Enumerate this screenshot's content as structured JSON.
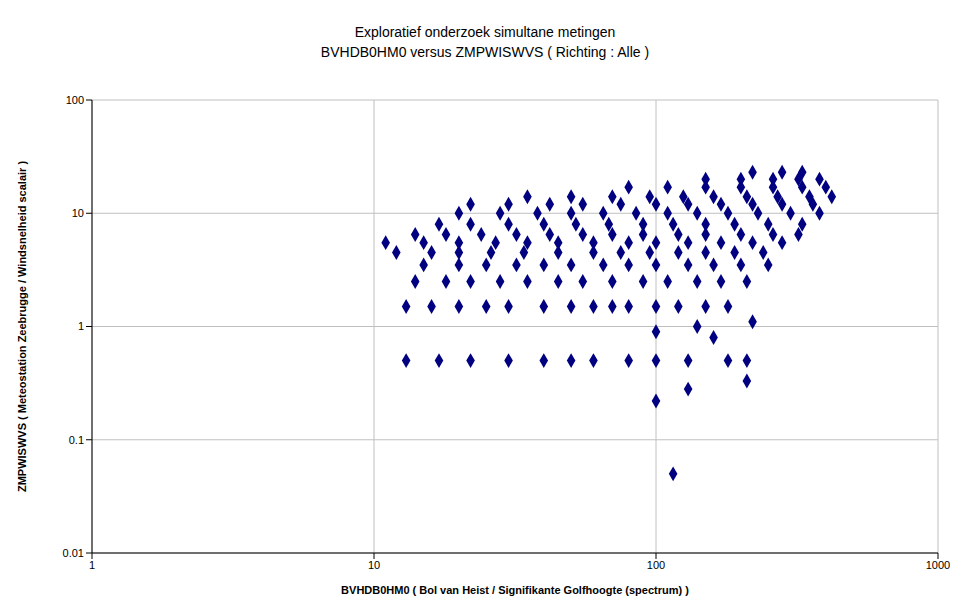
{
  "chart_data": {
    "type": "scatter",
    "title": "Exploratief onderzoek simultane metingen\nBVHDB0HM0 versus ZMPWISWVS ( Richting : Alle )",
    "x_label": "BVHDB0HM0 ( Bol van Heist / Signifikante Golfhoogte (spectrum) )",
    "y_label": "ZMPWISWVS ( Meteostation Zeebrugge / Windsnelheid scalair )",
    "log": true,
    "grid": true,
    "marker": "diamond",
    "color": "#000080",
    "xlim": [
      1,
      1000
    ],
    "xticks": [
      1,
      10,
      100,
      1000
    ],
    "ylim": [
      0.01,
      100
    ],
    "yticks": [
      0.01,
      0.1,
      1,
      10,
      100
    ],
    "x": [
      13,
      17,
      22,
      30,
      40,
      50,
      60,
      80,
      100,
      130,
      180,
      210,
      13,
      16,
      20,
      25,
      30,
      40,
      50,
      60,
      70,
      80,
      100,
      120,
      150,
      180,
      14,
      18,
      22,
      28,
      35,
      45,
      55,
      70,
      90,
      110,
      140,
      170,
      210,
      15,
      20,
      25,
      32,
      40,
      50,
      65,
      80,
      100,
      130,
      160,
      200,
      250,
      12,
      16,
      20,
      26,
      34,
      45,
      60,
      75,
      95,
      120,
      150,
      190,
      240,
      11,
      15,
      20,
      27,
      35,
      45,
      60,
      80,
      100,
      130,
      170,
      220,
      280,
      14,
      18,
      24,
      32,
      42,
      55,
      70,
      90,
      120,
      150,
      200,
      260,
      320,
      17,
      22,
      30,
      40,
      52,
      68,
      90,
      115,
      150,
      190,
      250,
      330,
      20,
      28,
      38,
      50,
      65,
      85,
      110,
      140,
      180,
      230,
      300,
      380,
      22,
      30,
      42,
      55,
      75,
      100,
      130,
      170,
      220,
      280,
      360,
      35,
      50,
      70,
      95,
      125,
      160,
      210,
      270,
      350,
      420,
      80,
      110,
      150,
      200,
      260,
      330,
      400,
      150,
      200,
      260,
      320,
      380,
      220,
      280,
      330,
      100,
      100,
      115,
      130,
      210,
      220,
      160,
      140
    ],
    "values": [
      0.5,
      0.5,
      0.5,
      0.5,
      0.5,
      0.5,
      0.5,
      0.5,
      0.5,
      0.5,
      0.5,
      0.5,
      1.5,
      1.5,
      1.5,
      1.5,
      1.5,
      1.5,
      1.5,
      1.5,
      1.5,
      1.5,
      1.5,
      1.5,
      1.5,
      1.5,
      2.5,
      2.5,
      2.5,
      2.5,
      2.5,
      2.5,
      2.5,
      2.5,
      2.5,
      2.5,
      2.5,
      2.5,
      2.5,
      3.5,
      3.5,
      3.5,
      3.5,
      3.5,
      3.5,
      3.5,
      3.5,
      3.5,
      3.5,
      3.5,
      3.5,
      3.5,
      4.5,
      4.5,
      4.5,
      4.5,
      4.5,
      4.5,
      4.5,
      4.5,
      4.5,
      4.5,
      4.5,
      4.5,
      4.5,
      5.5,
      5.5,
      5.5,
      5.5,
      5.5,
      5.5,
      5.5,
      5.5,
      5.5,
      5.5,
      5.5,
      5.5,
      5.5,
      6.5,
      6.5,
      6.5,
      6.5,
      6.5,
      6.5,
      6.5,
      6.5,
      6.5,
      6.5,
      6.5,
      6.5,
      6.5,
      8,
      8,
      8,
      8,
      8,
      8,
      8,
      8,
      8,
      8,
      8,
      8,
      10,
      10,
      10,
      10,
      10,
      10,
      10,
      10,
      10,
      10,
      10,
      10,
      12,
      12,
      12,
      12,
      12,
      12,
      12,
      12,
      12,
      12,
      12,
      14,
      14,
      14,
      14,
      14,
      14,
      14,
      14,
      14,
      14,
      17,
      17,
      17,
      17,
      17,
      17,
      17,
      20,
      20,
      20,
      20,
      20,
      23,
      23,
      23,
      0.9,
      0.22,
      0.05,
      0.28,
      0.33,
      1.1,
      0.8,
      1.0
    ]
  }
}
